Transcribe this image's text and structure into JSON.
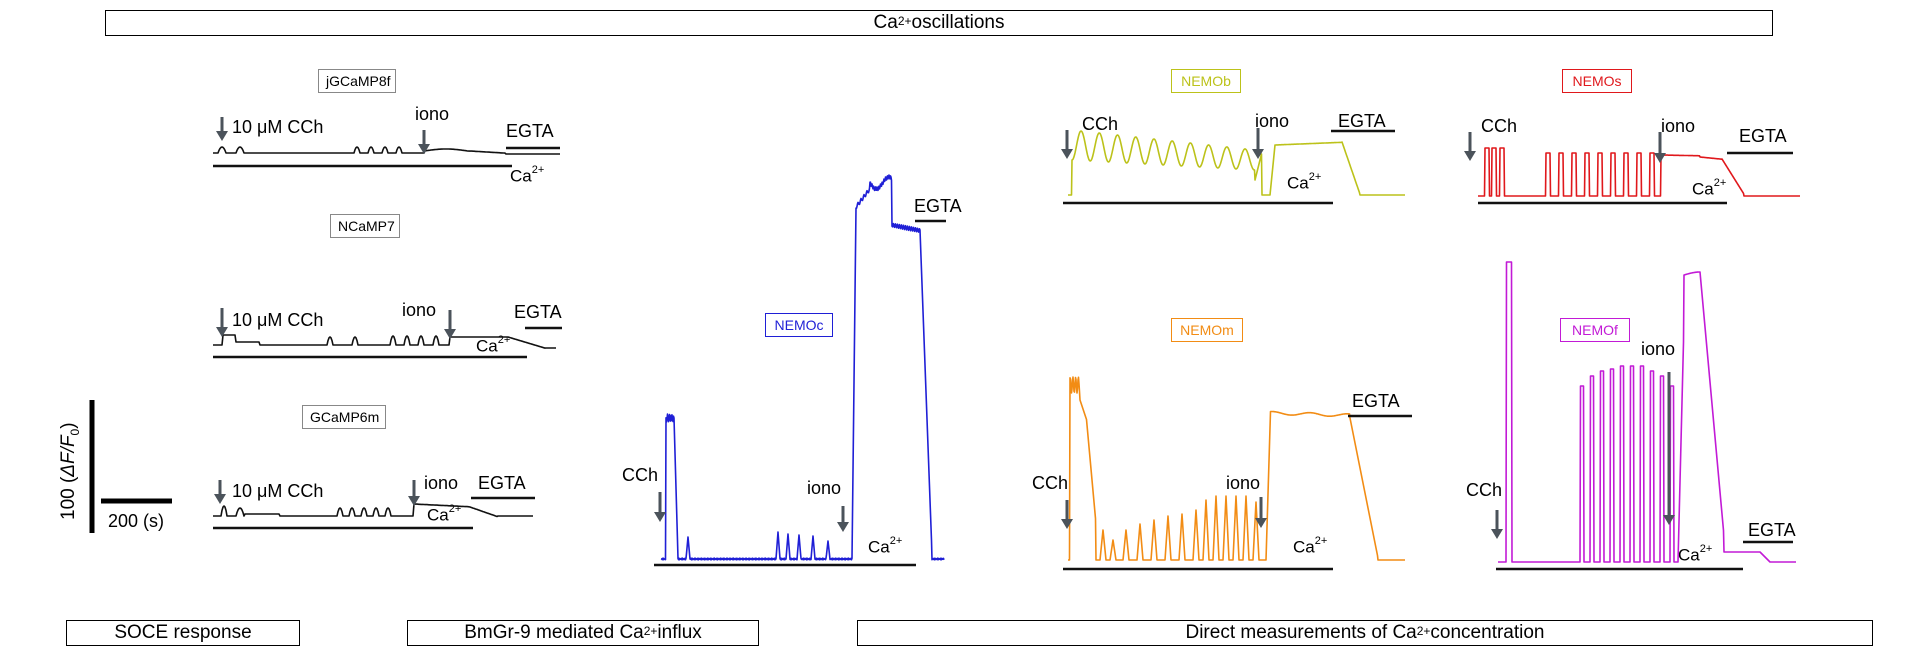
{
  "header": {
    "title_prefix": "Ca",
    "title_sup": "2+",
    "title_suffix": " oscillations"
  },
  "footer": {
    "soce": "SOCE response",
    "bmgr_prefix": "BmGr-9 mediated Ca",
    "bmgr_sup": "2+",
    "bmgr_suffix": " influx",
    "direct_prefix": "Direct measurements of Ca",
    "direct_sup": "2+",
    "direct_suffix": " concentration"
  },
  "scale_bar": {
    "y_label_num": "100 (",
    "y_label_var": "ΔF/F",
    "y_label_sub": "0",
    "y_label_end": ")",
    "x_label": "200 (s)"
  },
  "labels": {
    "cch": "CCh",
    "cch_10": "10 μM CCh",
    "iono": "iono",
    "egta": "EGTA",
    "ca": "Ca",
    "ca_sup": "2+"
  },
  "colors": {
    "black": "#111111",
    "NEMOc": "#1f1fd6",
    "NEMOb": "#bcc21a",
    "NEMOs": "#e0181c",
    "NEMOm": "#f28c14",
    "NEMOf": "#c21ad6",
    "arrow": "#4b535b"
  },
  "chart_data": [
    {
      "type": "line",
      "name": "jGCaMP8f",
      "color": "#111111",
      "events": [
        "10 μM CCh",
        "iono",
        "EGTA"
      ],
      "bars": [
        "Ca2+",
        "EGTA"
      ]
    },
    {
      "type": "line",
      "name": "NCaMP7",
      "color": "#111111",
      "events": [
        "10 μM CCh",
        "iono",
        "EGTA"
      ],
      "bars": [
        "Ca2+",
        "EGTA"
      ]
    },
    {
      "type": "line",
      "name": "GCaMP6m",
      "color": "#111111",
      "events": [
        "10 μM CCh",
        "iono",
        "EGTA"
      ],
      "bars": [
        "Ca2+",
        "EGTA"
      ]
    },
    {
      "type": "line",
      "name": "NEMOc",
      "color": "#1f1fd6",
      "events": [
        "CCh",
        "iono",
        "EGTA"
      ],
      "bars": [
        "Ca2+",
        "EGTA"
      ]
    },
    {
      "type": "line",
      "name": "NEMOb",
      "color": "#bcc21a",
      "events": [
        "CCh",
        "iono",
        "EGTA"
      ],
      "bars": [
        "Ca2+",
        "EGTA"
      ]
    },
    {
      "type": "line",
      "name": "NEMOs",
      "color": "#e0181c",
      "events": [
        "CCh",
        "iono",
        "EGTA"
      ],
      "bars": [
        "Ca2+",
        "EGTA"
      ]
    },
    {
      "type": "line",
      "name": "NEMOm",
      "color": "#f28c14",
      "events": [
        "CCh",
        "iono",
        "EGTA"
      ],
      "bars": [
        "Ca2+",
        "EGTA"
      ]
    },
    {
      "type": "line",
      "name": "NEMOf",
      "color": "#c21ad6",
      "events": [
        "CCh",
        "iono",
        "EGTA"
      ],
      "bars": [
        "Ca2+",
        "EGTA"
      ]
    }
  ]
}
